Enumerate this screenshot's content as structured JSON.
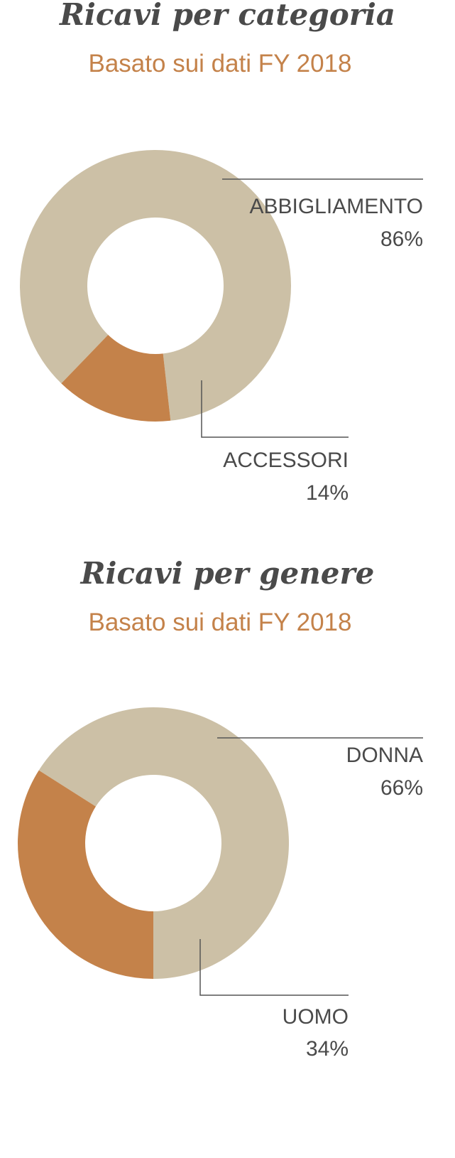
{
  "chart_data": [
    {
      "type": "pie",
      "title": "Ricavi per categoria",
      "subtitle": "Basato sui dati FY 2018",
      "categories": [
        "ABBIGLIAMENTO",
        "ACCESSORI"
      ],
      "values": [
        86,
        14
      ],
      "value_labels": [
        "86%",
        "14%"
      ],
      "colors": [
        "#ccc0a6",
        "#c4824a"
      ]
    },
    {
      "type": "pie",
      "title": "Ricavi per genere",
      "subtitle": "Basato sui dati FY 2018",
      "categories": [
        "DONNA",
        "UOMO"
      ],
      "values": [
        66,
        34
      ],
      "value_labels": [
        "66%",
        "34%"
      ],
      "colors": [
        "#ccc0a6",
        "#c4824a"
      ]
    }
  ]
}
